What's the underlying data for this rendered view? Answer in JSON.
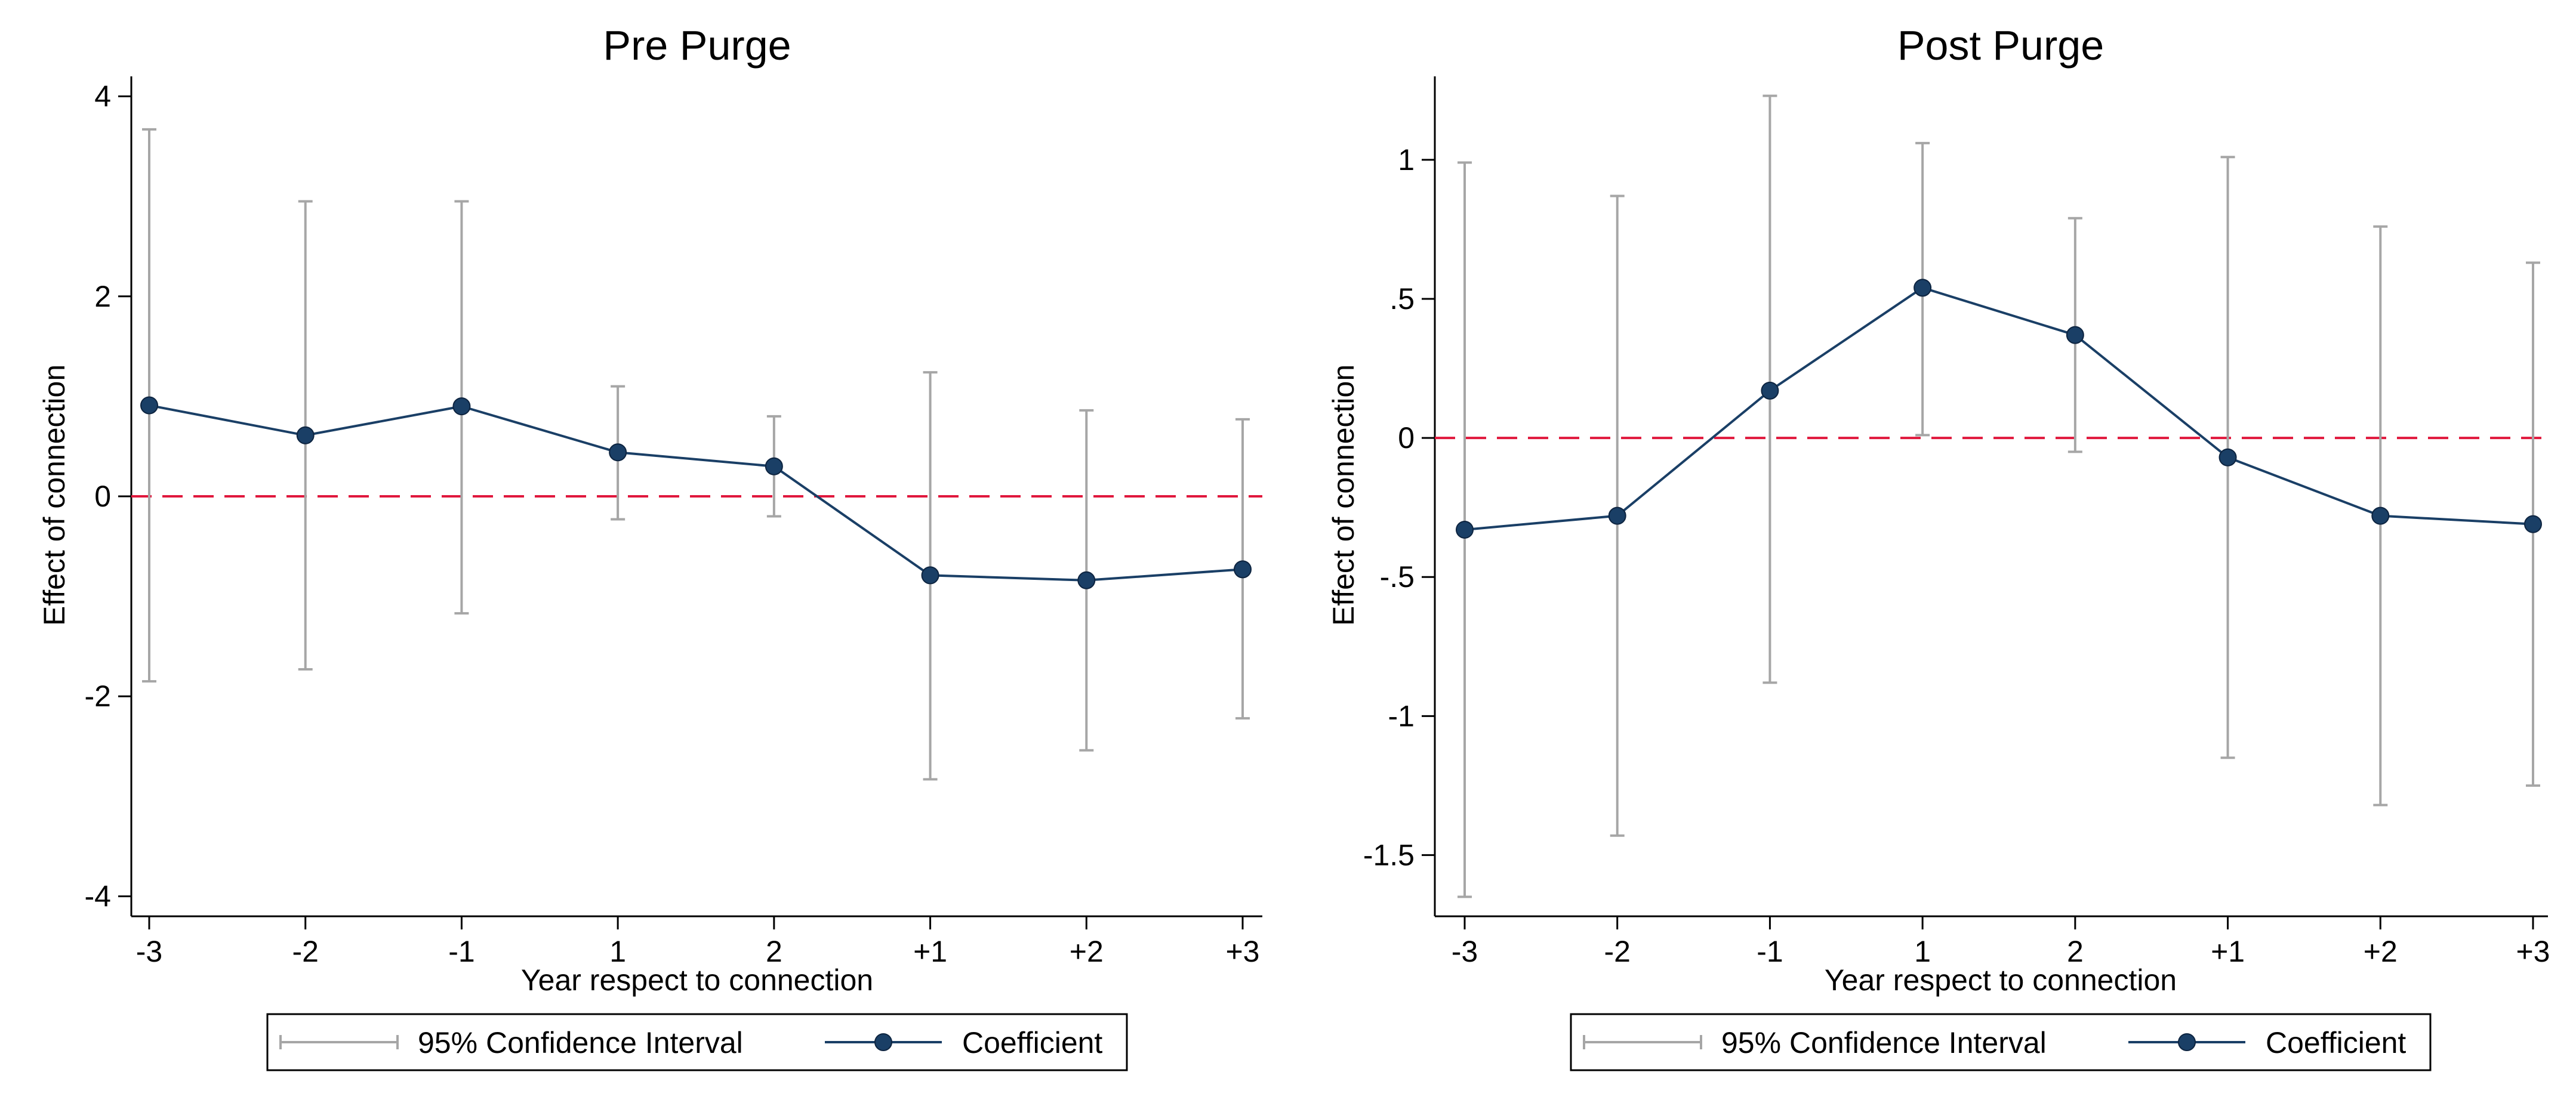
{
  "chart_data": [
    {
      "type": "line",
      "title": "Pre Purge",
      "xlabel": "Year respect to connection",
      "ylabel": "Effect of connection",
      "categories": [
        "-3",
        "-2",
        "-1",
        "1",
        "2",
        "+1",
        "+2",
        "+3"
      ],
      "ylim": [
        -4.2,
        4.2
      ],
      "yticks": [
        4,
        2,
        0,
        -2,
        -4
      ],
      "ytick_labels": [
        "4",
        "2",
        "0",
        "-2",
        "-4"
      ],
      "reference_line": 0,
      "series": [
        {
          "name": "Coefficient",
          "values": [
            0.91,
            0.61,
            0.9,
            0.44,
            0.3,
            -0.79,
            -0.84,
            -0.73
          ]
        },
        {
          "name": "95% Confidence Interval",
          "upper": [
            3.67,
            2.95,
            2.95,
            1.1,
            0.8,
            1.24,
            0.86,
            0.77
          ],
          "lower": [
            -1.85,
            -1.73,
            -1.17,
            -0.23,
            -0.2,
            -2.83,
            -2.54,
            -2.22
          ]
        }
      ],
      "legend": [
        "95% Confidence Interval",
        "Coefficient"
      ]
    },
    {
      "type": "line",
      "title": "Post Purge",
      "xlabel": "Year respect to connection",
      "ylabel": "Effect of connection",
      "categories": [
        "-3",
        "-2",
        "-1",
        "1",
        "2",
        "+1",
        "+2",
        "+3"
      ],
      "ylim": [
        -1.72,
        1.3
      ],
      "yticks": [
        1,
        0.5,
        0,
        -0.5,
        -1,
        -1.5
      ],
      "ytick_labels": [
        "1",
        ".5",
        "0",
        "-.5",
        "-1",
        "-1.5"
      ],
      "reference_line": 0,
      "series": [
        {
          "name": "Coefficient",
          "values": [
            -0.33,
            -0.28,
            0.17,
            0.54,
            0.37,
            -0.07,
            -0.28,
            -0.31
          ]
        },
        {
          "name": "95% Confidence Interval",
          "upper": [
            0.99,
            0.87,
            1.23,
            1.06,
            0.79,
            1.01,
            0.76,
            0.63
          ],
          "lower": [
            -1.65,
            -1.43,
            -0.88,
            0.01,
            -0.05,
            -1.15,
            -1.32,
            -1.25
          ]
        }
      ],
      "legend": [
        "95% Confidence Interval",
        "Coefficient"
      ]
    }
  ],
  "colors": {
    "coefficient": "#1a3f66",
    "ci": "#a6a6a6",
    "reference": "#e0173c",
    "axis": "#000000"
  }
}
